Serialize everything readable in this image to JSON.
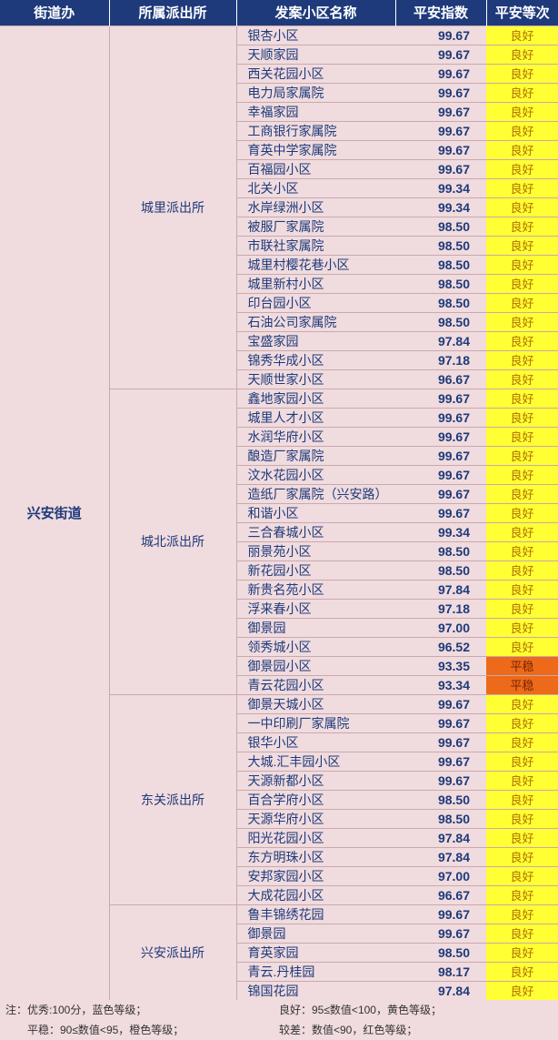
{
  "headers": {
    "jiedao": "街道办",
    "paichusuo": "所属派出所",
    "xiaoqu": "发案小区名称",
    "index": "平安指数",
    "level": "平安等次"
  },
  "jiedao": "兴安街道",
  "levels": {
    "good": "良好",
    "avg": "平稳"
  },
  "colors": {
    "header_bg": "#1e3a7b",
    "body_bg": "#f0dbde",
    "good_bg": "#ffff33",
    "avg_bg": "#ec6a1a"
  },
  "footer": {
    "l1": "注：优秀:100分，蓝色等级；",
    "r1": "良好：95≤数值<100，黄色等级；",
    "l2": "　　平稳：90≤数值<95，橙色等级；",
    "r2": "较差：数值<90，红色等级；"
  },
  "groups": [
    {
      "pcs": "城里派出所",
      "rows": [
        {
          "xq": "银杏小区",
          "idx": "99.67",
          "lvl": "good"
        },
        {
          "xq": "天顺家园",
          "idx": "99.67",
          "lvl": "good"
        },
        {
          "xq": "西关花园小区",
          "idx": "99.67",
          "lvl": "good"
        },
        {
          "xq": "电力局家属院",
          "idx": "99.67",
          "lvl": "good"
        },
        {
          "xq": "幸福家园",
          "idx": "99.67",
          "lvl": "good"
        },
        {
          "xq": "工商银行家属院",
          "idx": "99.67",
          "lvl": "good"
        },
        {
          "xq": "育英中学家属院",
          "idx": "99.67",
          "lvl": "good"
        },
        {
          "xq": "百福园小区",
          "idx": "99.67",
          "lvl": "good"
        },
        {
          "xq": "北关小区",
          "idx": "99.34",
          "lvl": "good"
        },
        {
          "xq": "水岸绿洲小区",
          "idx": "99.34",
          "lvl": "good"
        },
        {
          "xq": "被服厂家属院",
          "idx": "98.50",
          "lvl": "good"
        },
        {
          "xq": "市联社家属院",
          "idx": "98.50",
          "lvl": "good"
        },
        {
          "xq": "城里村樱花巷小区",
          "idx": "98.50",
          "lvl": "good"
        },
        {
          "xq": "城里新村小区",
          "idx": "98.50",
          "lvl": "good"
        },
        {
          "xq": "印台园小区",
          "idx": "98.50",
          "lvl": "good"
        },
        {
          "xq": "石油公司家属院",
          "idx": "98.50",
          "lvl": "good"
        },
        {
          "xq": "宝盛家园",
          "idx": "97.84",
          "lvl": "good"
        },
        {
          "xq": "锦秀华成小区",
          "idx": "97.18",
          "lvl": "good"
        },
        {
          "xq": "天顺世家小区",
          "idx": "96.67",
          "lvl": "good"
        }
      ]
    },
    {
      "pcs": "城北派出所",
      "rows": [
        {
          "xq": "鑫地家园小区",
          "idx": "99.67",
          "lvl": "good"
        },
        {
          "xq": "城里人才小区",
          "idx": "99.67",
          "lvl": "good"
        },
        {
          "xq": "水润华府小区",
          "idx": "99.67",
          "lvl": "good"
        },
        {
          "xq": "酿造厂家属院",
          "idx": "99.67",
          "lvl": "good"
        },
        {
          "xq": "汶水花园小区",
          "idx": "99.67",
          "lvl": "good"
        },
        {
          "xq": "造纸厂家属院（兴安路）",
          "idx": "99.67",
          "lvl": "good"
        },
        {
          "xq": "和谐小区",
          "idx": "99.67",
          "lvl": "good"
        },
        {
          "xq": "三合春城小区",
          "idx": "99.34",
          "lvl": "good"
        },
        {
          "xq": "丽景苑小区",
          "idx": "98.50",
          "lvl": "good"
        },
        {
          "xq": "新花园小区",
          "idx": "98.50",
          "lvl": "good"
        },
        {
          "xq": "新贵名苑小区",
          "idx": "97.84",
          "lvl": "good"
        },
        {
          "xq": "浮来春小区",
          "idx": "97.18",
          "lvl": "good"
        },
        {
          "xq": "御景园",
          "idx": "97.00",
          "lvl": "good"
        },
        {
          "xq": "领秀城小区",
          "idx": "96.52",
          "lvl": "good"
        },
        {
          "xq": "御景园小区",
          "idx": "93.35",
          "lvl": "avg"
        },
        {
          "xq": "青云花园小区",
          "idx": "93.34",
          "lvl": "avg"
        }
      ]
    },
    {
      "pcs": "东关派出所",
      "rows": [
        {
          "xq": "御景天城小区",
          "idx": "99.67",
          "lvl": "good"
        },
        {
          "xq": "一中印刷厂家属院",
          "idx": "99.67",
          "lvl": "good"
        },
        {
          "xq": "银华小区",
          "idx": "99.67",
          "lvl": "good"
        },
        {
          "xq": "大城.汇丰园小区",
          "idx": "99.67",
          "lvl": "good"
        },
        {
          "xq": "天源新都小区",
          "idx": "99.67",
          "lvl": "good"
        },
        {
          "xq": "百合学府小区",
          "idx": "98.50",
          "lvl": "good"
        },
        {
          "xq": "天源华府小区",
          "idx": "98.50",
          "lvl": "good"
        },
        {
          "xq": "阳光花园小区",
          "idx": "97.84",
          "lvl": "good"
        },
        {
          "xq": "东方明珠小区",
          "idx": "97.84",
          "lvl": "good"
        },
        {
          "xq": "安邦家园小区",
          "idx": "97.00",
          "lvl": "good"
        },
        {
          "xq": "大成花园小区",
          "idx": "96.67",
          "lvl": "good"
        }
      ]
    },
    {
      "pcs": "兴安派出所",
      "rows": [
        {
          "xq": "鲁丰锦绣花园",
          "idx": "99.67",
          "lvl": "good"
        },
        {
          "xq": "御景园",
          "idx": "99.67",
          "lvl": "good"
        },
        {
          "xq": "育英家园",
          "idx": "98.50",
          "lvl": "good"
        },
        {
          "xq": "青云.丹桂园",
          "idx": "98.17",
          "lvl": "good"
        },
        {
          "xq": "锦国花园",
          "idx": "97.84",
          "lvl": "good"
        }
      ]
    }
  ]
}
